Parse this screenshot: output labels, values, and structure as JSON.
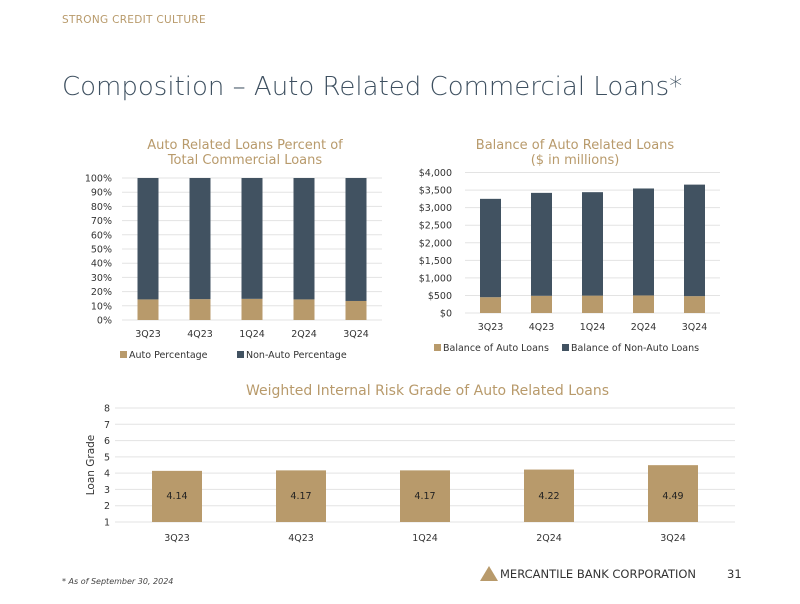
{
  "header": {
    "section": "STRONG CREDIT CULTURE",
    "title": "Composition – Auto Related Commercial Loans*"
  },
  "footer": {
    "footnote": "* As of September 30, 2024",
    "brand": "MERCANTILE BANK CORPORATION",
    "page": "31"
  },
  "colors": {
    "auto": "#b89a6b",
    "non_auto": "#415261",
    "grid": "#e3e3e3",
    "title": "#b89a6b"
  },
  "chart_data": [
    {
      "type": "bar",
      "stacked": true,
      "title": "Auto Related Loans Percent of Total Commercial Loans",
      "title_lines": [
        "Auto Related Loans Percent of",
        "Total Commercial Loans"
      ],
      "categories": [
        "3Q23",
        "4Q23",
        "1Q24",
        "2Q24",
        "3Q24"
      ],
      "series": [
        {
          "name": "Auto Percentage",
          "values": [
            14.5,
            14.7,
            14.9,
            14.5,
            13.4
          ]
        },
        {
          "name": "Non-Auto Percentage",
          "values": [
            85.5,
            85.3,
            85.1,
            85.5,
            86.6
          ]
        }
      ],
      "yticks": [
        "0%",
        "10%",
        "20%",
        "30%",
        "40%",
        "50%",
        "60%",
        "70%",
        "80%",
        "90%",
        "100%"
      ],
      "ylim": [
        0,
        100
      ],
      "grid": true,
      "legend": "bottom"
    },
    {
      "type": "bar",
      "stacked": true,
      "title": "Balance of Auto Related Loans ($ in millions)",
      "title_lines": [
        "Balance of Auto Related Loans",
        "($ in millions)"
      ],
      "categories": [
        "3Q23",
        "4Q23",
        "1Q24",
        "2Q24",
        "3Q24"
      ],
      "series": [
        {
          "name": "Balance of Auto Loans",
          "values": [
            450,
            490,
            495,
            500,
            480
          ]
        },
        {
          "name": "Balance of Non-Auto Loans",
          "values": [
            2800,
            2930,
            2945,
            3045,
            3175
          ]
        }
      ],
      "yticks": [
        "$0",
        "$500",
        "$1,000",
        "$1,500",
        "$2,000",
        "$2,500",
        "$3,000",
        "$3,500",
        "$4,000"
      ],
      "ylim": [
        0,
        4000
      ],
      "grid": true,
      "legend": "bottom"
    },
    {
      "type": "bar",
      "title": "Weighted Internal Risk Grade of Auto Related Loans",
      "ylabel": "Loan Grade",
      "categories": [
        "3Q23",
        "4Q23",
        "1Q24",
        "2Q24",
        "3Q24"
      ],
      "values": [
        4.14,
        4.17,
        4.17,
        4.22,
        4.49
      ],
      "data_labels": [
        "4.14",
        "4.17",
        "4.17",
        "4.22",
        "4.49"
      ],
      "yticks": [
        "1",
        "2",
        "3",
        "4",
        "5",
        "6",
        "7",
        "8"
      ],
      "ylim": [
        1,
        8
      ],
      "grid": true
    }
  ]
}
